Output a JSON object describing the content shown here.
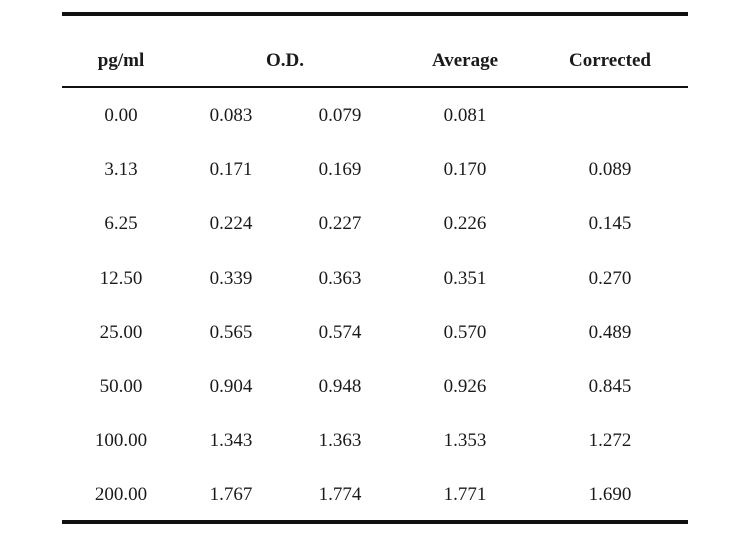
{
  "table": {
    "headers": {
      "concentration": "pg/ml",
      "od": "O.D.",
      "average": "Average",
      "corrected": "Corrected"
    },
    "rows": [
      {
        "conc": "0.00",
        "od1": "0.083",
        "od2": "0.079",
        "avg": "0.081",
        "corr": ""
      },
      {
        "conc": "3.13",
        "od1": "0.171",
        "od2": "0.169",
        "avg": "0.170",
        "corr": "0.089"
      },
      {
        "conc": "6.25",
        "od1": "0.224",
        "od2": "0.227",
        "avg": "0.226",
        "corr": "0.145"
      },
      {
        "conc": "12.50",
        "od1": "0.339",
        "od2": "0.363",
        "avg": "0.351",
        "corr": "0.270"
      },
      {
        "conc": "25.00",
        "od1": "0.565",
        "od2": "0.574",
        "avg": "0.570",
        "corr": "0.489"
      },
      {
        "conc": "50.00",
        "od1": "0.904",
        "od2": "0.948",
        "avg": "0.926",
        "corr": "0.845"
      },
      {
        "conc": "100.00",
        "od1": "1.343",
        "od2": "1.363",
        "avg": "1.353",
        "corr": "1.272"
      },
      {
        "conc": "200.00",
        "od1": "1.767",
        "od2": "1.774",
        "avg": "1.771",
        "corr": "1.690"
      }
    ]
  }
}
